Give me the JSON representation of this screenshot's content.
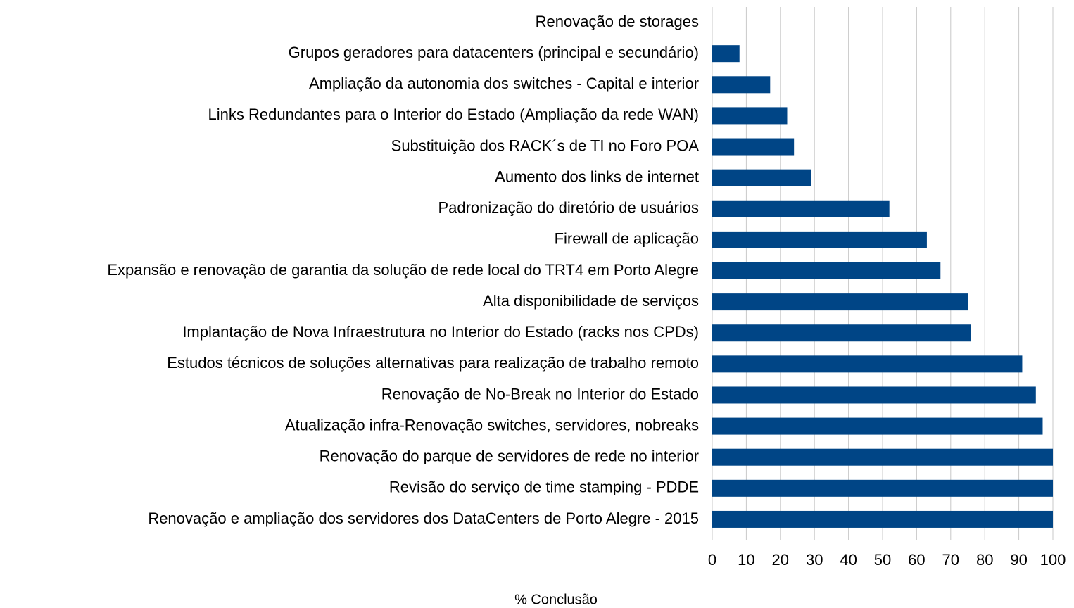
{
  "chart_data": {
    "type": "barh",
    "x_label": "% Conclusão",
    "categories": [
      "Renovação de storages",
      "Grupos geradores para datacenters (principal e secundário)",
      "Ampliação da autonomia dos switches - Capital e interior",
      "Links Redundantes para o Interior do Estado (Ampliação da rede WAN)",
      "Substituição dos RACK´s de TI no Foro POA",
      "Aumento dos links de internet",
      "Padronização do diretório de usuários",
      "Firewall de aplicação",
      "Expansão e renovação de garantia da solução de rede local do TRT4 em Porto Alegre",
      "Alta disponibilidade de serviços",
      "Implantação de Nova Infraestrutura no Interior do Estado (racks nos CPDs)",
      "Estudos técnicos de soluções alternativas para realização de trabalho remoto",
      "Renovação de No-Break no Interior do Estado",
      "Atualização infra-Renovação switches, servidores, nobreaks",
      "Renovação do parque de servidores de rede no interior",
      "Revisão do serviço de time stamping - PDDE",
      "Renovação e ampliação dos servidores dos DataCenters de Porto Alegre - 2015"
    ],
    "values": [
      0,
      8,
      17,
      22,
      24,
      29,
      52,
      63,
      67,
      75,
      76,
      91,
      95,
      97,
      100,
      100,
      100
    ],
    "color": "#004586",
    "xlim": [
      0,
      100
    ],
    "xticks": [
      0,
      10,
      20,
      30,
      40,
      50,
      60,
      70,
      80,
      90,
      100
    ],
    "grid": true
  }
}
